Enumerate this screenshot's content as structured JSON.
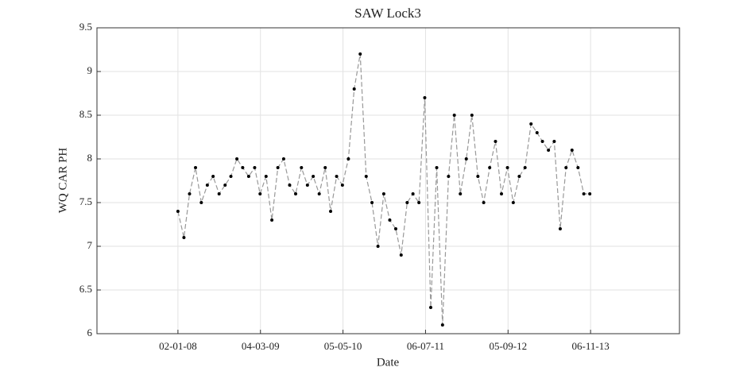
{
  "chart_data": {
    "type": "line",
    "title": "SAW Lock3",
    "x_label": "Date",
    "y_label": "WQ CAR PH",
    "x": [
      "2008-01-02",
      "2008-02-02",
      "2008-03-02",
      "2008-04-02",
      "2008-05-02",
      "2008-06-02",
      "2008-07-02",
      "2008-08-02",
      "2008-09-02",
      "2008-10-02",
      "2008-11-02",
      "2008-12-02",
      "2009-01-02",
      "2009-02-02",
      "2009-03-02",
      "2009-04-02",
      "2009-05-02",
      "2009-06-02",
      "2009-07-02",
      "2009-08-02",
      "2009-09-02",
      "2009-10-02",
      "2009-11-02",
      "2009-12-02",
      "2010-01-02",
      "2010-02-02",
      "2010-03-02",
      "2010-04-02",
      "2010-05-02",
      "2010-06-02",
      "2010-07-02",
      "2010-08-02",
      "2010-09-02",
      "2010-10-02",
      "2010-11-02",
      "2010-12-02",
      "2011-01-02",
      "2011-02-02",
      "2011-03-02",
      "2011-04-02",
      "2011-05-02",
      "2011-06-02",
      "2011-07-02",
      "2011-08-02",
      "2011-09-02",
      "2011-10-02",
      "2011-11-02",
      "2011-12-02",
      "2012-01-02",
      "2012-02-02",
      "2012-03-02",
      "2012-04-02",
      "2012-05-02",
      "2012-06-02",
      "2012-07-02",
      "2012-08-02",
      "2012-09-02",
      "2012-10-02",
      "2012-11-02",
      "2012-12-02",
      "2013-01-02",
      "2013-02-02",
      "2013-03-02",
      "2013-04-02",
      "2013-05-02",
      "2013-06-02",
      "2013-07-02",
      "2013-08-02",
      "2013-09-02",
      "2013-10-02",
      "2013-11-02"
    ],
    "series": [
      {
        "name": "WQ CAR PH",
        "color": "#000000",
        "line_color": "#999999",
        "values": [
          7.4,
          7.1,
          7.6,
          7.9,
          7.5,
          7.7,
          7.8,
          7.6,
          7.7,
          7.8,
          8.0,
          7.9,
          7.8,
          7.9,
          7.6,
          7.8,
          7.3,
          7.9,
          8.0,
          7.7,
          7.6,
          7.9,
          7.7,
          7.8,
          7.6,
          7.9,
          7.4,
          7.8,
          7.7,
          8.0,
          8.8,
          9.2,
          7.8,
          7.5,
          7.0,
          7.6,
          7.3,
          7.2,
          6.9,
          7.5,
          7.6,
          7.5,
          8.7,
          6.3,
          7.9,
          6.1,
          7.8,
          8.5,
          7.6,
          8.0,
          8.5,
          7.8,
          7.5,
          7.9,
          8.2,
          7.6,
          7.9,
          7.5,
          7.8,
          7.9,
          8.4,
          8.3,
          8.2,
          8.1,
          8.2,
          7.2,
          7.9,
          8.1,
          7.9,
          7.6,
          7.6
        ]
      }
    ],
    "xlim": [
      "2006-11-09",
      "2015-02-09"
    ],
    "xticks": [
      {
        "value": "2008-01-02",
        "label": "02-01-08"
      },
      {
        "value": "2009-03-04",
        "label": "04-03-09"
      },
      {
        "value": "2010-05-05",
        "label": "05-05-10"
      },
      {
        "value": "2011-07-06",
        "label": "06-07-11"
      },
      {
        "value": "2012-09-05",
        "label": "05-09-12"
      },
      {
        "value": "2013-11-06",
        "label": "06-11-13"
      }
    ],
    "ylim": [
      6,
      9.5
    ],
    "yticks": [
      6,
      6.5,
      7,
      7.5,
      8,
      8.5,
      9,
      9.5
    ],
    "grid": true
  }
}
